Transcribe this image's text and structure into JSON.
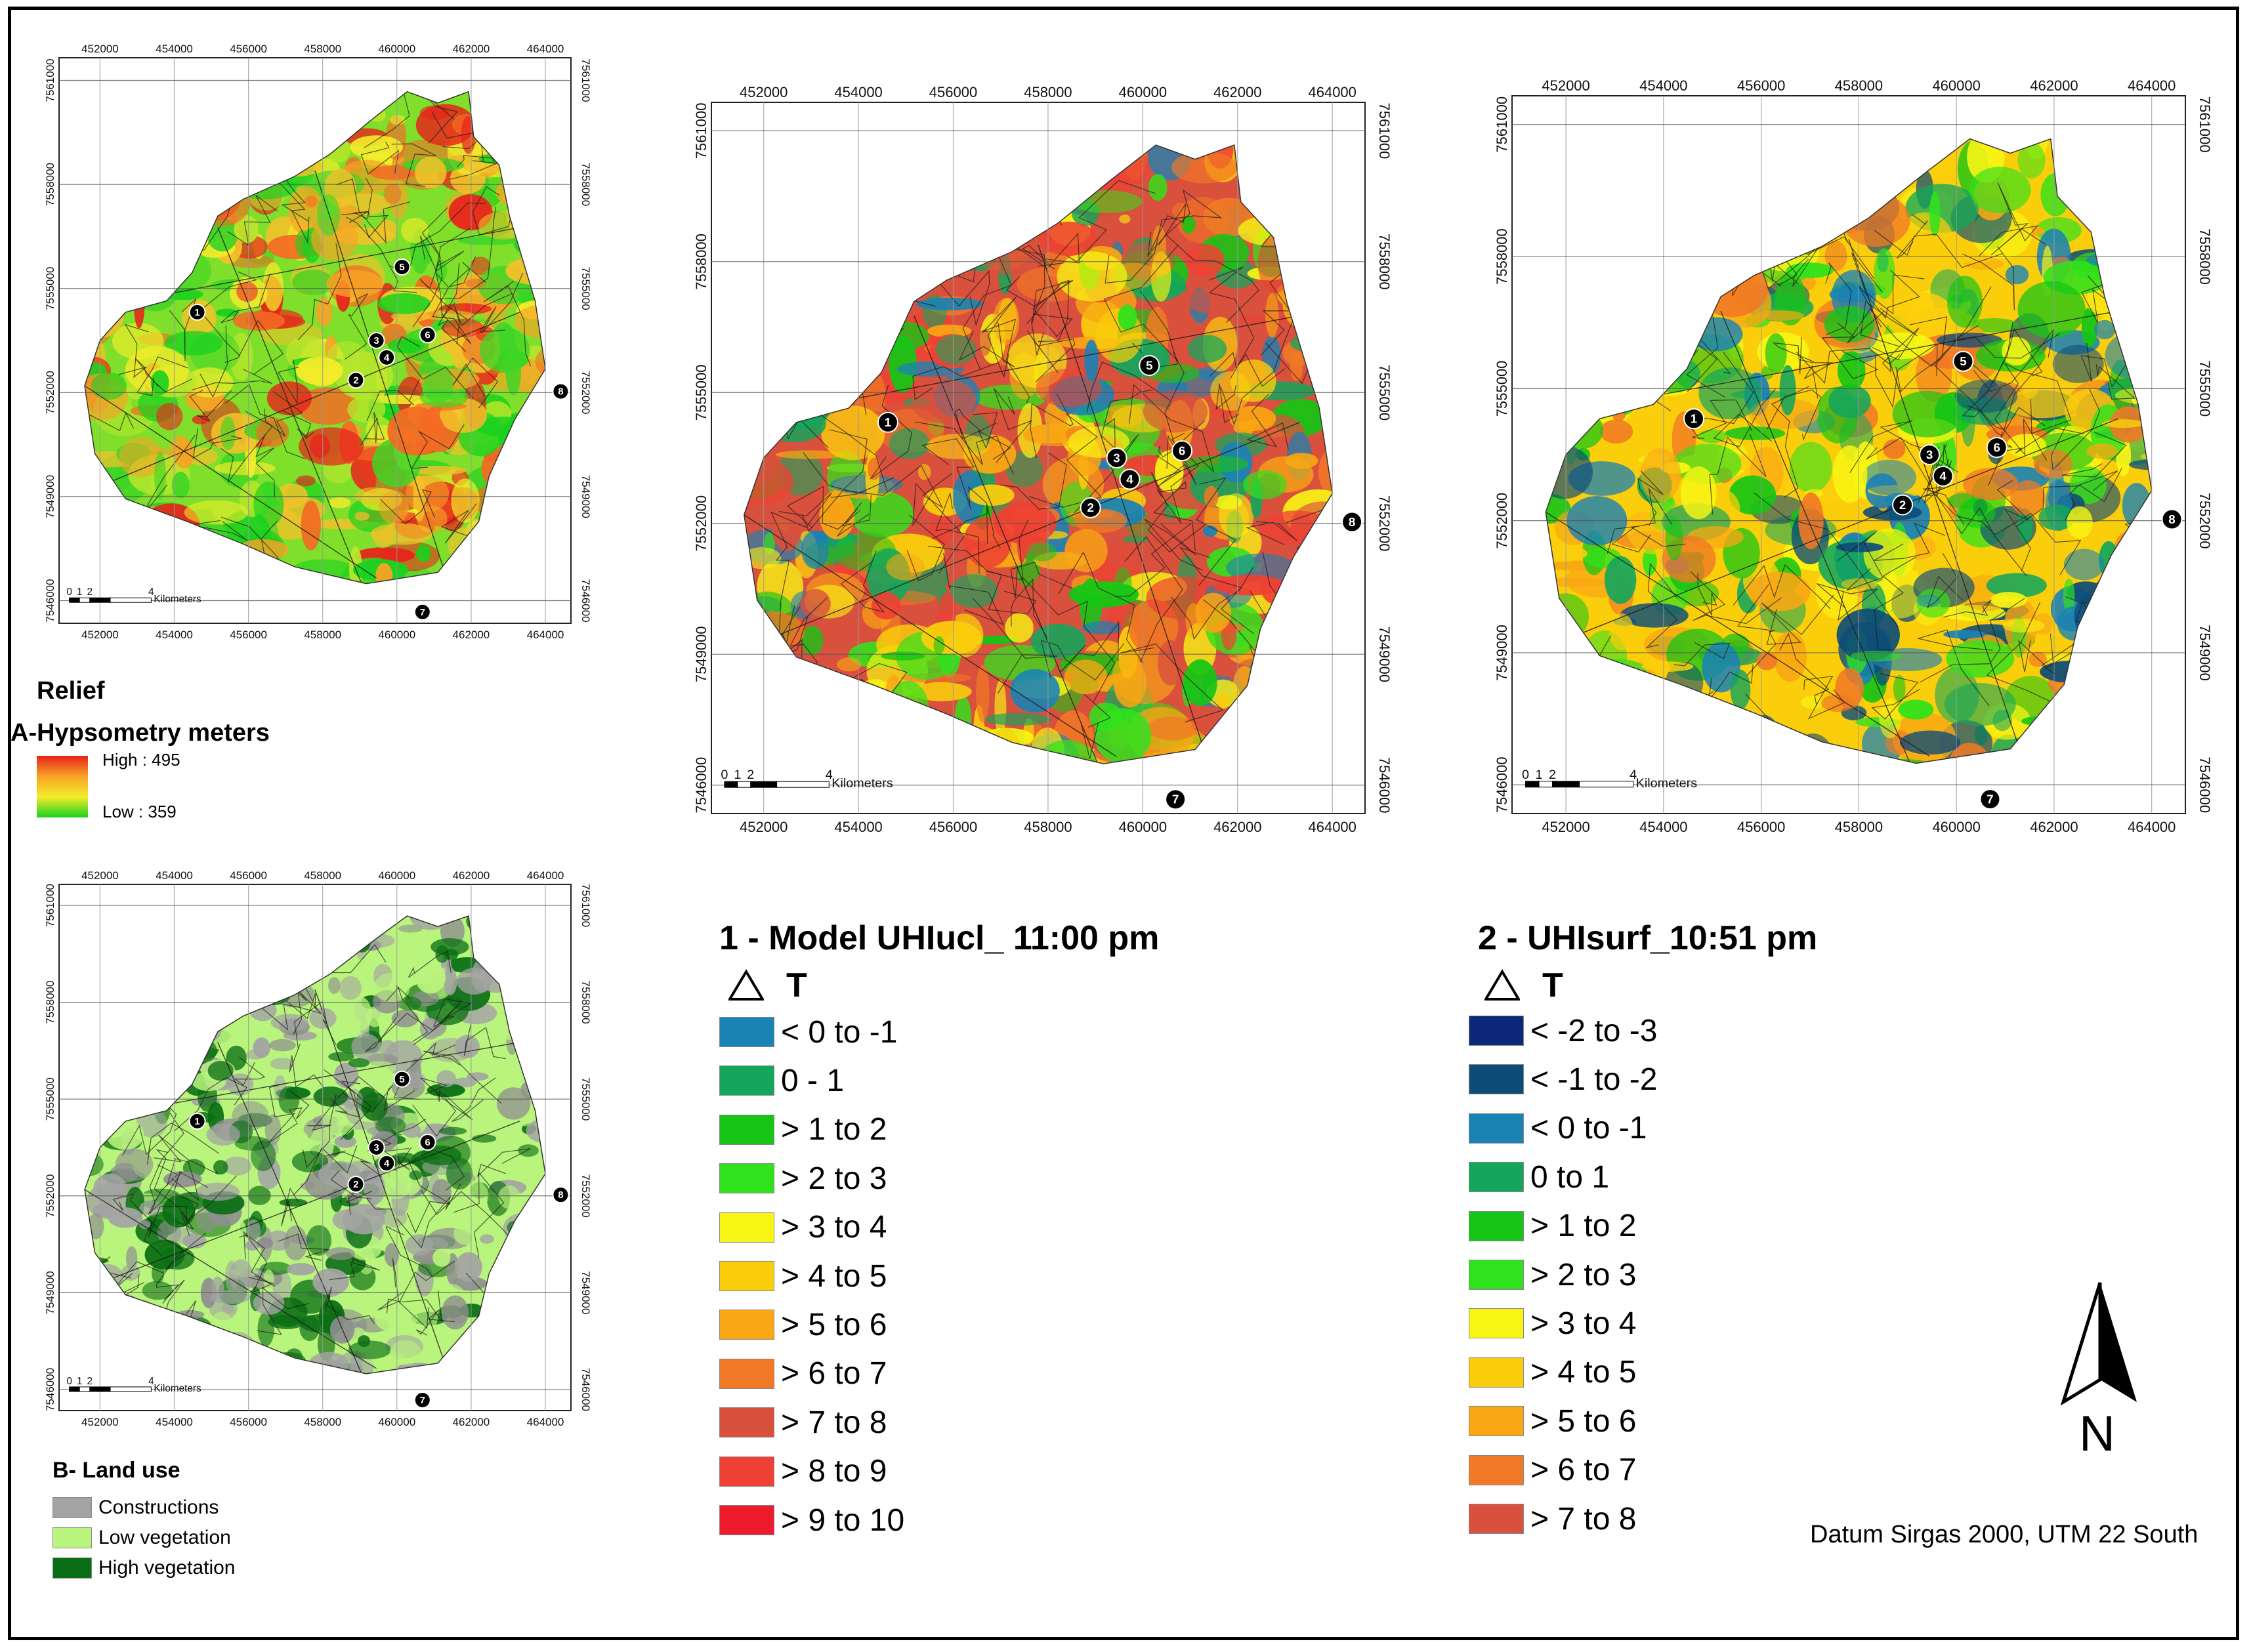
{
  "maps": {
    "a": {
      "x_ticks": [
        "452000",
        "454000",
        "456000",
        "458000",
        "460000",
        "462000",
        "464000"
      ],
      "y_ticks_left": [
        "7561000",
        "7558000",
        "7555000",
        "7552000",
        "7549000",
        "7546000"
      ],
      "y_ticks_right": [
        "7561000",
        "7558000",
        "7555000",
        "7552000",
        "7549000",
        "7546000"
      ],
      "scale_numbers": [
        "0",
        "1",
        "2",
        "4"
      ],
      "scale_unit": "Kilometers"
    },
    "b": {
      "x_ticks": [
        "452000",
        "454000",
        "456000",
        "458000",
        "460000",
        "462000",
        "464000"
      ],
      "y_ticks_left": [
        "7561000",
        "7558000",
        "7555000",
        "7552000",
        "7549000",
        "7546000"
      ],
      "y_ticks_right": [
        "7561000",
        "7558000",
        "7555000",
        "7552000",
        "7549000",
        "7546000"
      ],
      "scale_numbers": [
        "0",
        "1",
        "2",
        "4"
      ],
      "scale_unit": "Kilometers"
    },
    "c": {
      "x_ticks": [
        "452000",
        "454000",
        "456000",
        "458000",
        "460000",
        "462000",
        "464000"
      ],
      "y_ticks_left": [
        "7561000",
        "7558000",
        "7555000",
        "7552000",
        "7549000",
        "7546000"
      ],
      "y_ticks_right": [
        "7561000",
        "7558000",
        "7555000",
        "7552000",
        "7549000",
        "7546000"
      ],
      "scale_numbers": [
        "0",
        "1",
        "2",
        "4"
      ],
      "scale_unit": "Kilometers"
    },
    "d": {
      "x_ticks": [
        "452000",
        "454000",
        "456000",
        "458000",
        "460000",
        "462000",
        "464000"
      ],
      "y_ticks_left": [
        "7561000",
        "7558000",
        "7555000",
        "7552000",
        "7549000",
        "7546000"
      ],
      "y_ticks_right": [
        "7561000",
        "7558000",
        "7555000",
        "7552000",
        "7549000",
        "7546000"
      ],
      "scale_numbers": [
        "0",
        "1",
        "2",
        "4"
      ],
      "scale_unit": "Kilometers"
    },
    "site_numbers": [
      "1",
      "2",
      "3",
      "4",
      "5",
      "6",
      "7",
      "8"
    ]
  },
  "relief_legend": {
    "title": "Relief",
    "subtitle": "A-Hypsometry meters",
    "high": "High : 495",
    "low": "Low : 359",
    "gradient": [
      "#e8231c",
      "#f7a325",
      "#f4ec2a",
      "#19d11f"
    ]
  },
  "landuse_legend": {
    "title": "B- Land use",
    "items": [
      {
        "label": "Constructions",
        "color": "#a3a3a3"
      },
      {
        "label": "Low vegetation",
        "color": "#b9f47d"
      },
      {
        "label": "High vegetation",
        "color": "#0a6e14"
      }
    ]
  },
  "ucl_legend": {
    "title": "1 - Model UHIucl_ 11:00 pm",
    "symbol": "T",
    "items": [
      {
        "label": "< 0 to -1",
        "color": "#1b82b4"
      },
      {
        "label": "0 - 1",
        "color": "#14a65b"
      },
      {
        "label": "> 1 to 2",
        "color": "#16c515"
      },
      {
        "label": "> 2 to 3",
        "color": "#30e21c"
      },
      {
        "label": "> 3 to 4",
        "color": "#f8f514"
      },
      {
        "label": "> 4 to 5",
        "color": "#fbce0c"
      },
      {
        "label": "> 5 to 6",
        "color": "#f9a713"
      },
      {
        "label": "> 6 to 7",
        "color": "#f17825"
      },
      {
        "label": "> 7 to 8",
        "color": "#d9503d"
      },
      {
        "label": "> 8 to 9",
        "color": "#ee4133"
      },
      {
        "label": "> 9 to 10",
        "color": "#ee1b2c"
      }
    ]
  },
  "surf_legend": {
    "title": "2 - UHIsurf_10:51 pm",
    "symbol": "T",
    "items": [
      {
        "label": "< -2  to -3",
        "color": "#0d2779"
      },
      {
        "label": "< -1 to -2",
        "color": "#0d4c78"
      },
      {
        "label": "< 0 to -1",
        "color": "#1b82b4"
      },
      {
        "label": "0 to 1",
        "color": "#14a65b"
      },
      {
        "label": "> 1 to  2",
        "color": "#16c515"
      },
      {
        "label": "> 2 to 3",
        "color": "#30e21c"
      },
      {
        "label": "> 3 to 4",
        "color": "#f8f514"
      },
      {
        "label": "> 4 to 5",
        "color": "#fbce0c"
      },
      {
        "label": "> 5 to 6",
        "color": "#f9a713"
      },
      {
        "label": "> 6 to 7",
        "color": "#f17825"
      },
      {
        "label": "> 7 to 8",
        "color": "#d9503d"
      }
    ]
  },
  "north_arrow": {
    "label": "N"
  },
  "datum": "Datum Sirgas 2000, UTM 22 South"
}
